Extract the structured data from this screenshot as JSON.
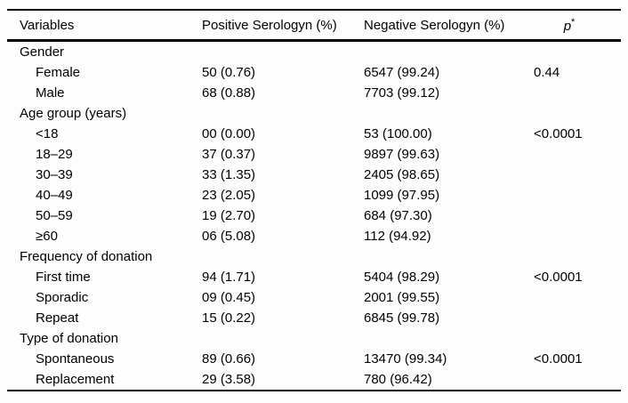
{
  "table": {
    "columns": [
      "Variables",
      "Positive Serologyn (%)",
      "Negative Serologyn (%)"
    ],
    "p_header": {
      "symbol": "p",
      "note_marker": "*"
    },
    "colors": {
      "text": "#000000",
      "border": "#000000",
      "background": "#fdfdfd"
    },
    "sections": [
      {
        "label": "Gender",
        "rows": [
          {
            "variable": "Female",
            "positive": "50 (0.76)",
            "negative": "6547 (99.24)",
            "p": "0.44"
          },
          {
            "variable": "Male",
            "positive": "68 (0.88)",
            "negative": "7703 (99.12)",
            "p": ""
          }
        ]
      },
      {
        "label": "Age group (years)",
        "rows": [
          {
            "variable": "<18",
            "positive": "00 (0.00)",
            "negative": "53 (100.00)",
            "p": "<0.0001"
          },
          {
            "variable": "18–29",
            "positive": "37 (0.37)",
            "negative": "9897 (99.63)",
            "p": ""
          },
          {
            "variable": "30–39",
            "positive": "33 (1.35)",
            "negative": "2405 (98.65)",
            "p": ""
          },
          {
            "variable": "40–49",
            "positive": "23 (2.05)",
            "negative": "1099 (97.95)",
            "p": ""
          },
          {
            "variable": "50–59",
            "positive": "19 (2.70)",
            "negative": "684 (97.30)",
            "p": ""
          },
          {
            "variable": "≥60",
            "positive": "06 (5.08)",
            "negative": "112 (94.92)",
            "p": ""
          }
        ]
      },
      {
        "label": "Frequency of donation",
        "rows": [
          {
            "variable": "First time",
            "positive": "94 (1.71)",
            "negative": "5404 (98.29)",
            "p": "<0.0001"
          },
          {
            "variable": "Sporadic",
            "positive": "09 (0.45)",
            "negative": "2001 (99.55)",
            "p": ""
          },
          {
            "variable": "Repeat",
            "positive": "15 (0.22)",
            "negative": "6845 (99.78)",
            "p": ""
          }
        ]
      },
      {
        "label": "Type of donation",
        "rows": [
          {
            "variable": "Spontaneous",
            "positive": "89 (0.66)",
            "negative": "13470 (99.34)",
            "p": "<0.0001"
          },
          {
            "variable": "Replacement",
            "positive": "29 (3.58)",
            "negative": "780 (96.42)",
            "p": ""
          }
        ]
      }
    ]
  }
}
